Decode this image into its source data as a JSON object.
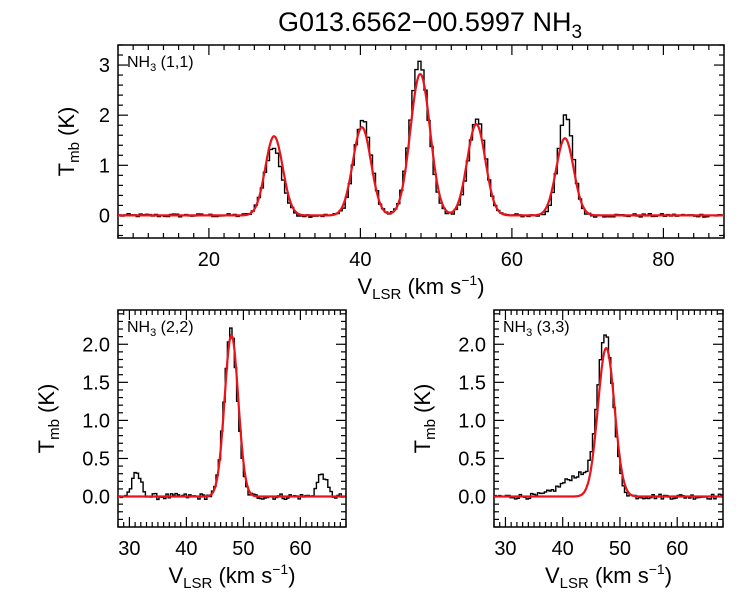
{
  "figure": {
    "title_main": "G013.6562−00.5997 NH",
    "title_sub": "3",
    "title_text": "G013.6562−00.5997 NH3"
  },
  "colors": {
    "observed": "#000000",
    "fit": "#e8141b",
    "axes": "#000000"
  },
  "chart_data": [
    {
      "type": "line",
      "panel": "top",
      "annotation": "NH3 (1,1)",
      "ann_main": "NH",
      "ann_sub": "3",
      "ann_rest": " (1,1)",
      "xlabel": "V_LSR (km s^-1)",
      "ylabel": "T_mb (K)",
      "xlim": [
        8,
        88
      ],
      "ylim": [
        -0.45,
        3.4
      ],
      "xticks": [
        20,
        40,
        60,
        80
      ],
      "yticks": [
        0,
        1,
        2,
        3
      ],
      "series": [
        {
          "kind": "observed",
          "components": [
            {
              "center": 28.5,
              "amp": 1.35,
              "sigma": 1.15
            },
            {
              "center": 40.3,
              "amp": 1.9,
              "sigma": 1.15
            },
            {
              "center": 47.8,
              "amp": 3.05,
              "sigma": 1.25
            },
            {
              "center": 55.4,
              "amp": 1.9,
              "sigma": 1.15
            },
            {
              "center": 67.1,
              "amp": 2.0,
              "sigma": 1.0
            }
          ],
          "noise": 0.035
        },
        {
          "kind": "fit",
          "components": [
            {
              "center": 28.6,
              "amp": 1.58,
              "sigma": 1.15
            },
            {
              "center": 40.2,
              "amp": 1.76,
              "sigma": 1.2
            },
            {
              "center": 47.9,
              "amp": 2.82,
              "sigma": 1.3
            },
            {
              "center": 55.3,
              "amp": 1.82,
              "sigma": 1.2
            },
            {
              "center": 67.0,
              "amp": 1.54,
              "sigma": 1.15
            }
          ]
        }
      ]
    },
    {
      "type": "line",
      "panel": "bottom-left",
      "annotation": "NH3 (2,2)",
      "ann_main": "NH",
      "ann_sub": "3",
      "ann_rest": " (2,2)",
      "xlabel": "V_LSR (km s^-1)",
      "ylabel": "T_mb (K)",
      "xlim": [
        28,
        68
      ],
      "ylim": [
        -0.4,
        2.45
      ],
      "xticks": [
        30,
        40,
        50,
        60
      ],
      "yticks": [
        0.0,
        0.5,
        1.0,
        1.5,
        2.0
      ],
      "ytick_labels": [
        "0.0",
        "0.5",
        "1.0",
        "1.5",
        "2.0"
      ],
      "series": [
        {
          "kind": "observed",
          "components": [
            {
              "center": 31.3,
              "amp": 0.3,
              "sigma": 0.8
            },
            {
              "center": 47.8,
              "amp": 2.18,
              "sigma": 1.15
            },
            {
              "center": 63.8,
              "amp": 0.3,
              "sigma": 0.8
            }
          ],
          "noise": 0.04
        },
        {
          "kind": "fit",
          "components": [
            {
              "center": 47.9,
              "amp": 2.12,
              "sigma": 1.2
            }
          ]
        }
      ]
    },
    {
      "type": "line",
      "panel": "bottom-right",
      "annotation": "NH3 (3,3)",
      "ann_main": "NH",
      "ann_sub": "3",
      "ann_rest": " (3,3)",
      "xlabel": "V_LSR (km s^-1)",
      "ylabel": "T_mb (K)",
      "xlim": [
        28,
        68
      ],
      "ylim": [
        -0.4,
        2.45
      ],
      "xticks": [
        30,
        40,
        50,
        60
      ],
      "yticks": [
        0.0,
        0.5,
        1.0,
        1.5,
        2.0
      ],
      "ytick_labels": [
        "0.0",
        "0.5",
        "1.0",
        "1.5",
        "2.0"
      ],
      "series": [
        {
          "kind": "observed",
          "components": [
            {
              "center": 47.5,
              "amp": 2.05,
              "sigma": 1.35
            },
            {
              "center": 43.0,
              "amp": 0.28,
              "sigma": 3.0
            }
          ],
          "noise": 0.035
        },
        {
          "kind": "fit",
          "components": [
            {
              "center": 47.6,
              "amp": 1.95,
              "sigma": 1.45
            }
          ]
        }
      ]
    }
  ]
}
